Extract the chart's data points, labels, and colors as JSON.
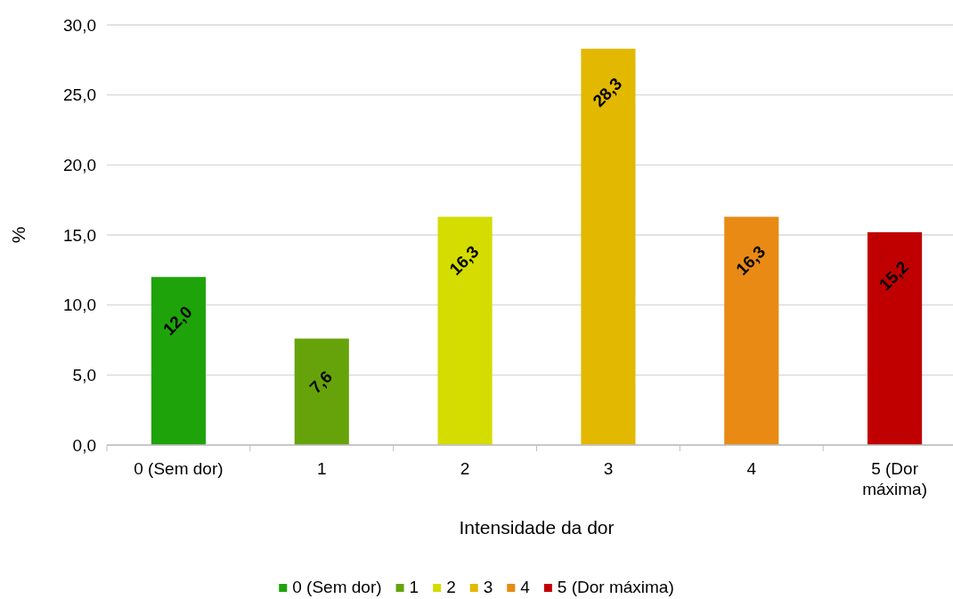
{
  "chart_data": {
    "type": "bar",
    "xlabel": "Intensidade da dor",
    "ylabel": "%",
    "categories": [
      "0 (Sem dor)",
      "1",
      "2",
      "3",
      "4",
      "5 (Dor máxima)"
    ],
    "series": [
      {
        "name": "0 (Sem dor)",
        "color": "#1fa30a",
        "values": [
          12.0,
          null,
          null,
          null,
          null,
          null
        ],
        "value_labels": [
          "12,0",
          null,
          null,
          null,
          null,
          null
        ]
      },
      {
        "name": "1",
        "color": "#66a30a",
        "values": [
          null,
          7.6,
          null,
          null,
          null,
          null
        ],
        "value_labels": [
          null,
          "7,6",
          null,
          null,
          null,
          null
        ]
      },
      {
        "name": "2",
        "color": "#d4dc00",
        "values": [
          null,
          null,
          16.3,
          null,
          null,
          null
        ],
        "value_labels": [
          null,
          null,
          "16,3",
          null,
          null,
          null
        ]
      },
      {
        "name": "3",
        "color": "#e2b800",
        "values": [
          null,
          null,
          null,
          28.3,
          null,
          null
        ],
        "value_labels": [
          null,
          null,
          null,
          "28,3",
          null,
          null
        ]
      },
      {
        "name": "4",
        "color": "#e88a14",
        "values": [
          null,
          null,
          null,
          null,
          16.3,
          null
        ],
        "value_labels": [
          null,
          null,
          null,
          null,
          "16,3",
          null
        ]
      },
      {
        "name": "5 (Dor máxima)",
        "color": "#c00000",
        "values": [
          null,
          null,
          null,
          null,
          null,
          15.2
        ],
        "value_labels": [
          null,
          null,
          null,
          null,
          null,
          "15,2"
        ]
      }
    ],
    "stacked": true,
    "ylim": [
      0,
      30
    ],
    "yticks": [
      {
        "value": 0,
        "label": "0,0"
      },
      {
        "value": 5,
        "label": "5,0"
      },
      {
        "value": 10,
        "label": "10,0"
      },
      {
        "value": 15,
        "label": "15,0"
      },
      {
        "value": 20,
        "label": "20,0"
      },
      {
        "value": 25,
        "label": "25,0"
      },
      {
        "value": 30,
        "label": "30,0"
      }
    ],
    "grid": "y",
    "legend": "bottom"
  }
}
